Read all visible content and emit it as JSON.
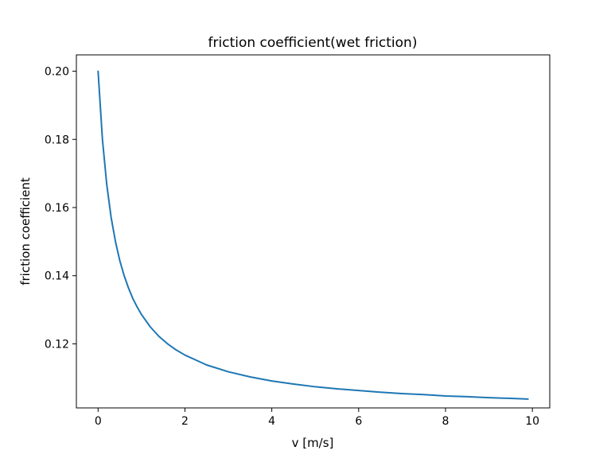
{
  "chart_data": {
    "type": "line",
    "title": "friction coefficient(wet friction)",
    "xlabel": "v [m/s]",
    "ylabel": "friction coefficient",
    "xlim": [
      -0.5,
      10.4
    ],
    "ylim": [
      0.1012,
      0.2048
    ],
    "x_ticks": [
      0,
      2,
      4,
      6,
      8,
      10
    ],
    "y_ticks": [
      0.12,
      0.14,
      0.16,
      0.18,
      0.2
    ],
    "x_tick_labels": [
      "0",
      "2",
      "4",
      "6",
      "8",
      "10"
    ],
    "y_tick_labels": [
      "0.12",
      "0.14",
      "0.16",
      "0.18",
      "0.20"
    ],
    "grid": false,
    "legend": "none",
    "series": [
      {
        "color": "#1f77b4",
        "x": [
          0,
          0.1,
          0.2,
          0.3,
          0.4,
          0.5,
          0.6,
          0.7,
          0.8,
          0.9,
          1.0,
          1.2,
          1.4,
          1.6,
          1.8,
          2.0,
          2.5,
          3.0,
          3.5,
          4.0,
          4.5,
          5.0,
          5.5,
          6.0,
          6.5,
          7.0,
          7.5,
          8.0,
          8.5,
          9.0,
          9.5,
          9.9
        ],
        "y": [
          0.2,
          0.18,
          0.1667,
          0.1571,
          0.15,
          0.1444,
          0.14,
          0.1364,
          0.1333,
          0.1308,
          0.1286,
          0.125,
          0.1222,
          0.12,
          0.1182,
          0.1167,
          0.1138,
          0.1118,
          0.1103,
          0.1091,
          0.1082,
          0.1074,
          0.1068,
          0.1063,
          0.1058,
          0.1054,
          0.1051,
          0.1047,
          0.1045,
          0.1042,
          0.104,
          0.1038
        ]
      }
    ]
  }
}
